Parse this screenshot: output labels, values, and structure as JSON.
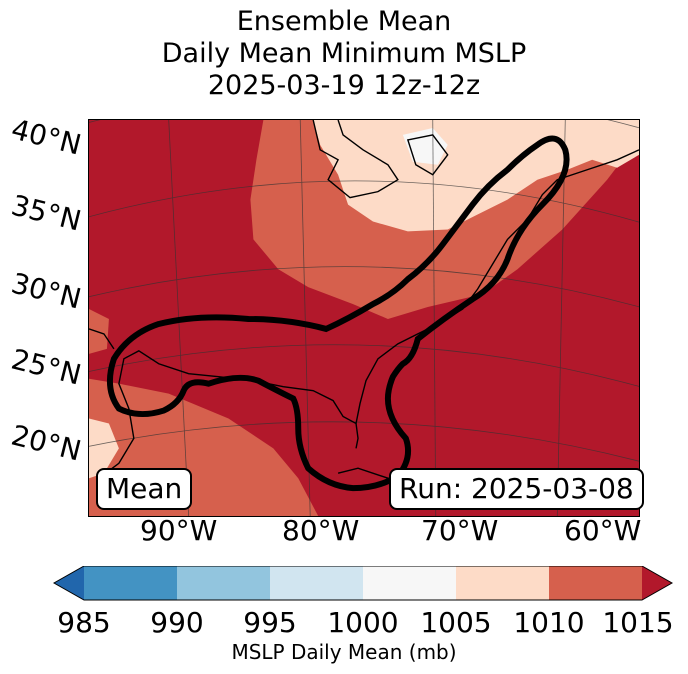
{
  "title": {
    "line1": "Ensemble Mean",
    "line2": "Daily Mean Minimum MSLP",
    "line3": "2025-03-19 12z-12z"
  },
  "map": {
    "lat_labels": [
      "40°N",
      "35°N",
      "30°N",
      "25°N",
      "20°N"
    ],
    "lon_labels": [
      "90°W",
      "80°W",
      "70°W",
      "60°W"
    ],
    "legend_left": "Mean",
    "legend_right": "Run: 2025-03-08"
  },
  "colorbar": {
    "ticks": [
      "985",
      "990",
      "995",
      "1000",
      "1005",
      "1010",
      "1015"
    ],
    "label": "MSLP Daily Mean (mb)",
    "colors": {
      "under": "#2166ac",
      "b985_990": "#4393c3",
      "b990_995": "#92c5de",
      "b995_1000": "#d1e5f0",
      "b1000_1005": "#f7f7f7",
      "b1005_1010": "#fddbc7",
      "b1010_1015": "#d6604d",
      "over": "#b2182b"
    }
  }
}
